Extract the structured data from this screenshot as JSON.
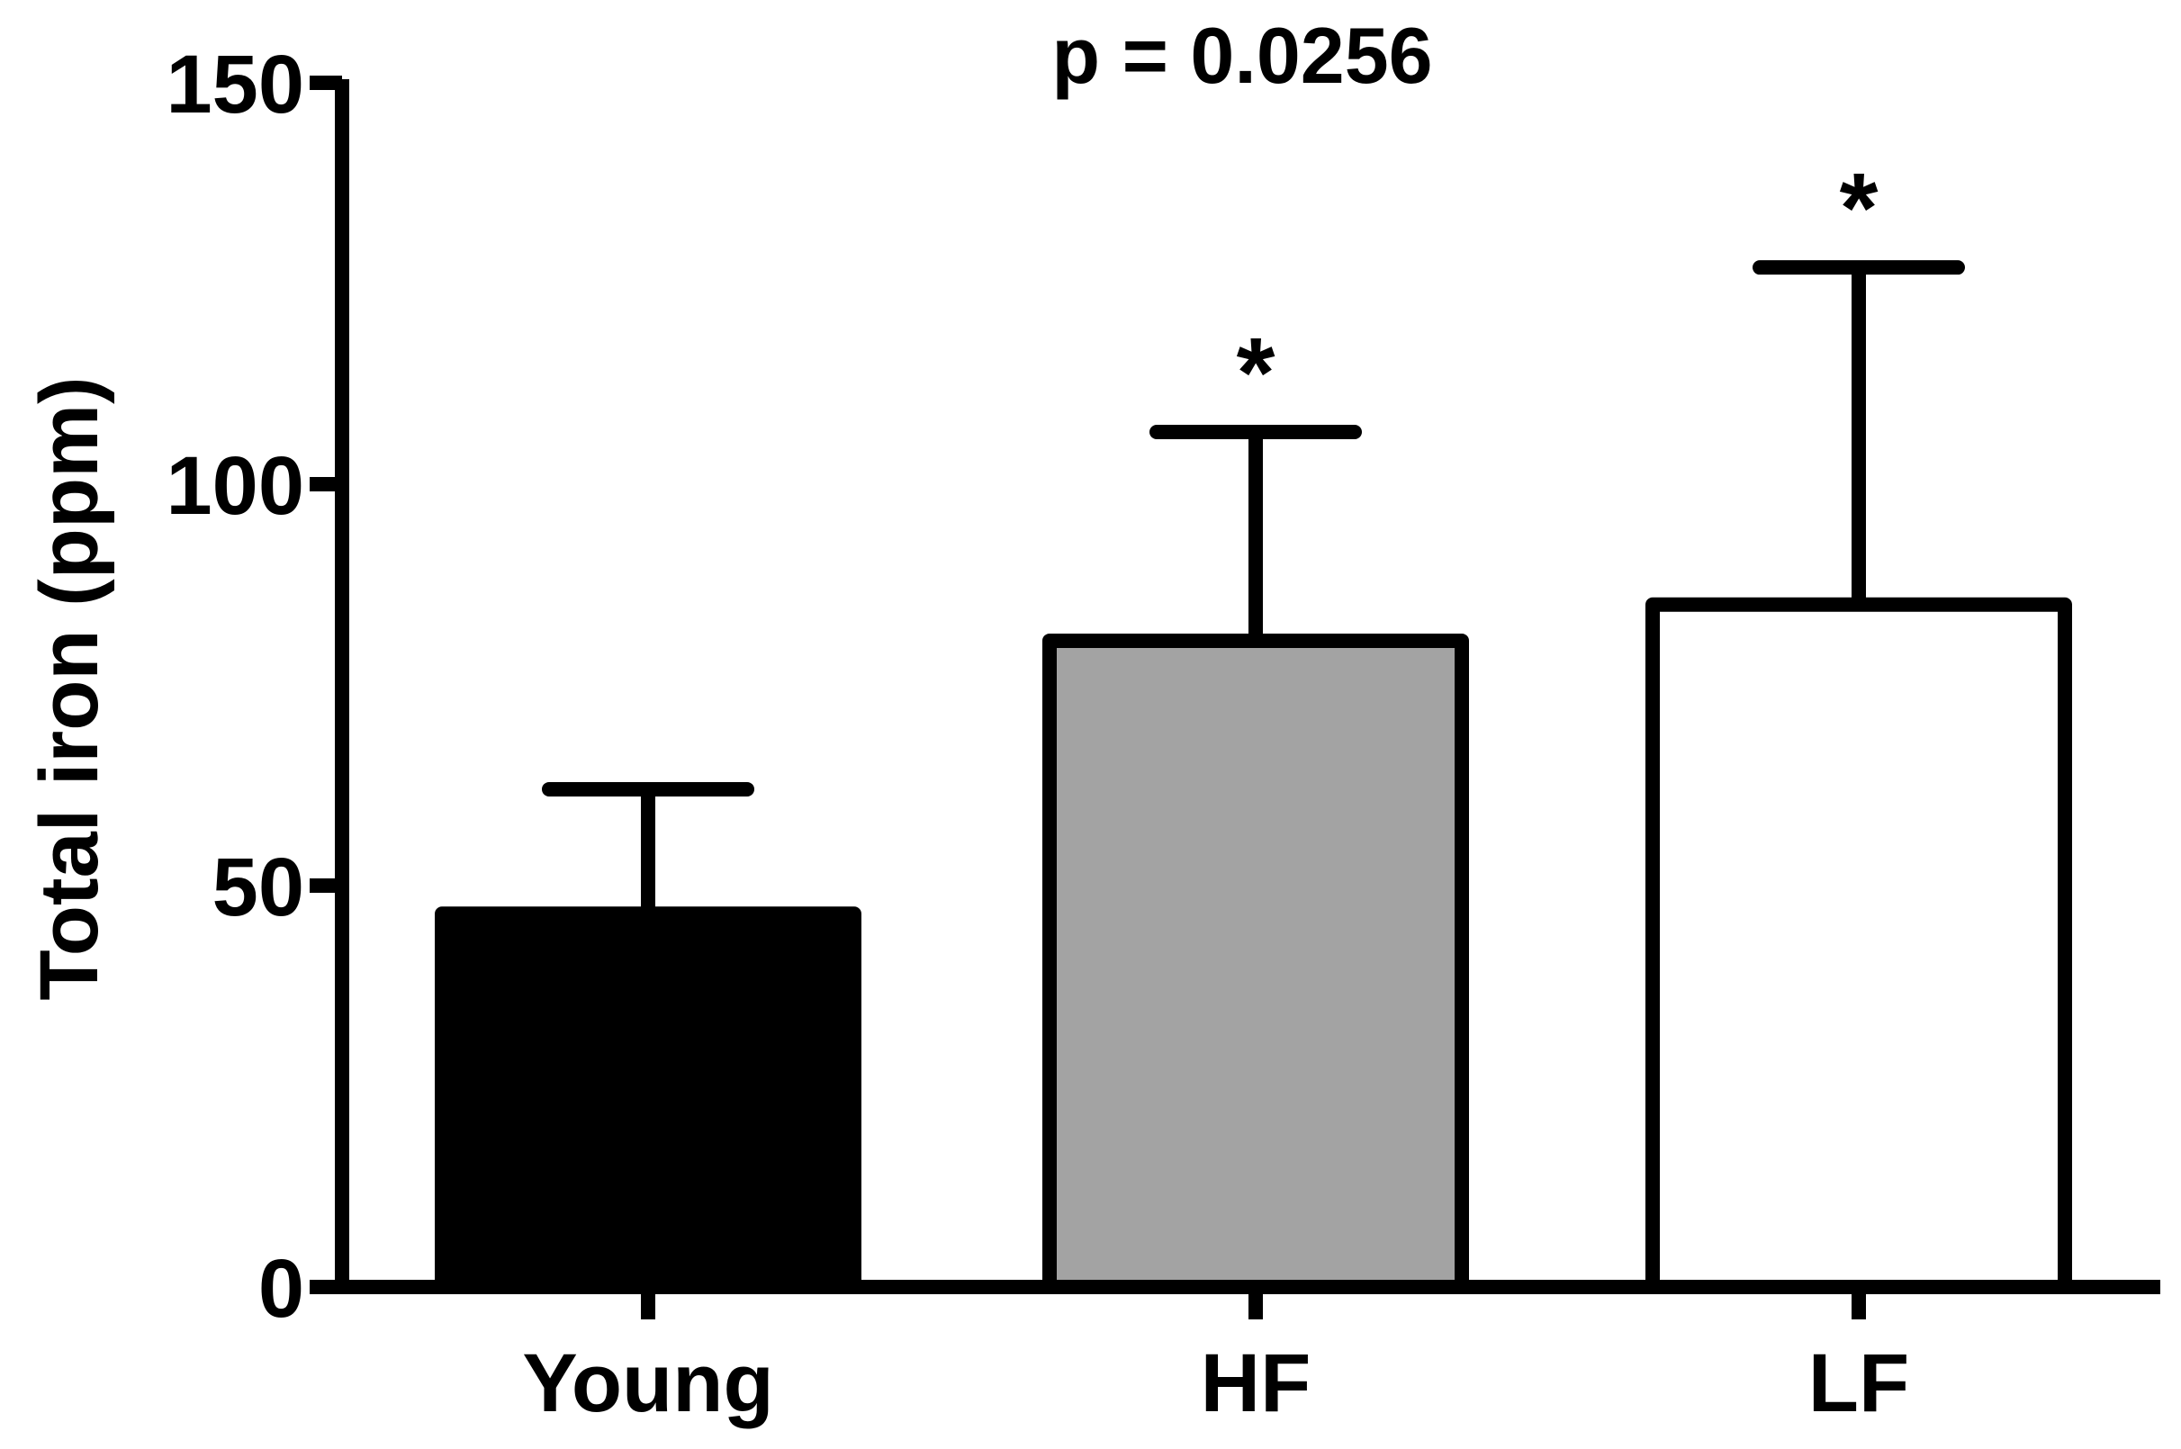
{
  "chart_data": {
    "type": "bar",
    "categories": [
      "Young",
      "HF",
      "LF"
    ],
    "values": [
      46.5,
      80.5,
      85
    ],
    "errors": [
      15.5,
      26,
      42
    ],
    "bar_colors": [
      "#000000",
      "#a3a3a3",
      "#ffffff"
    ],
    "significance": [
      "",
      "*",
      "*"
    ],
    "annotation": "p = 0.0256",
    "title": "",
    "xlabel": "",
    "ylabel": "Total iron (ppm)",
    "ylim": [
      0,
      150
    ],
    "yticks": [
      0,
      50,
      100,
      150
    ],
    "grid": false,
    "legend": false
  }
}
